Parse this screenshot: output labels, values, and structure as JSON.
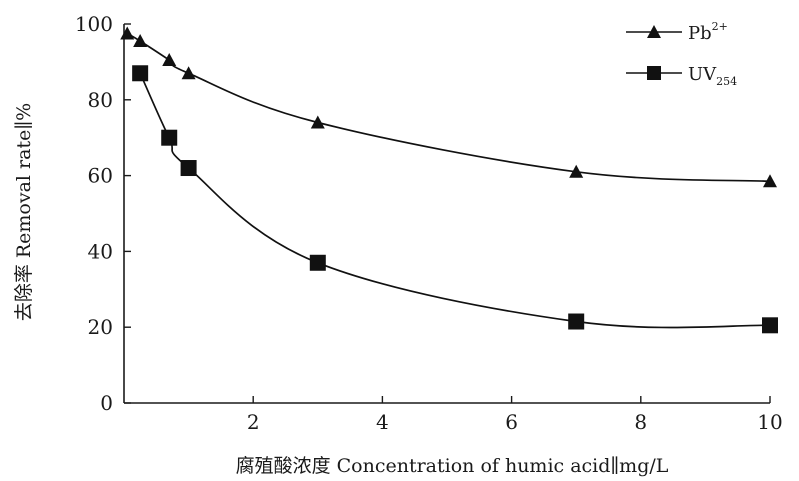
{
  "chart_data": {
    "type": "line",
    "title": "",
    "xlabel": "腐殖酸浓度 Concentration of humic acid∥mg/L",
    "ylabel": "去除率 Removal rate∥%",
    "xlim": [
      0,
      10
    ],
    "ylim": [
      0,
      100
    ],
    "x_ticks": [
      2,
      4,
      6,
      8,
      10
    ],
    "y_ticks": [
      0,
      20,
      40,
      60,
      80,
      100
    ],
    "grid": false,
    "legend_position": "top-right",
    "series": [
      {
        "name": "Pb2+",
        "label_main": "Pb",
        "label_sup": "2+",
        "marker": "triangle",
        "color": "#111111",
        "x": [
          0.05,
          0.25,
          0.7,
          1.0,
          3.0,
          7.0,
          10.0
        ],
        "y": [
          97.5,
          95.5,
          90.5,
          87.0,
          74.0,
          61.0,
          58.5
        ]
      },
      {
        "name": "UV254",
        "label_main": "UV",
        "label_sub": "254",
        "marker": "square",
        "color": "#111111",
        "x": [
          0.25,
          0.7,
          1.0,
          3.0,
          7.0,
          10.0
        ],
        "y": [
          87.0,
          70.0,
          62.0,
          37.0,
          21.5,
          20.5
        ]
      }
    ]
  }
}
